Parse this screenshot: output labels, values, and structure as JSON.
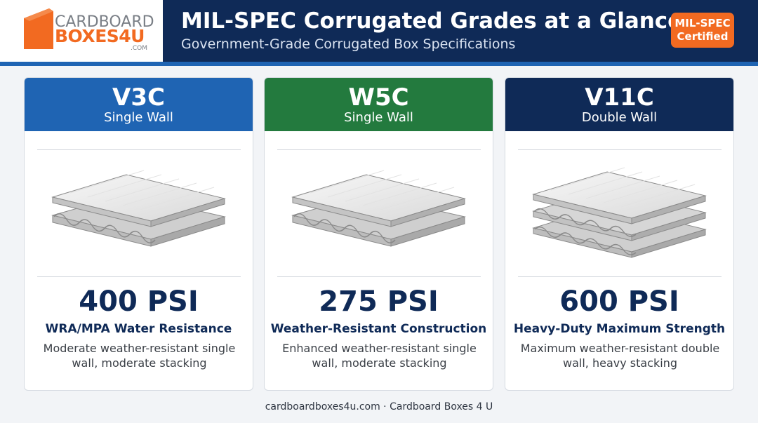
{
  "logo": {
    "line1": "CARDBOARD",
    "line2": "BOXES4U",
    "line3": ".COM"
  },
  "header": {
    "title": "MIL-SPEC Corrugated Grades at a Glance",
    "subtitle": "Government-Grade Corrugated Box Specifications",
    "badge_line1": "MIL-SPEC",
    "badge_line2": "Certified"
  },
  "colors": {
    "navy": "#0f2a57",
    "blue": "#1f64b3",
    "green": "#237a3e",
    "orange": "#f26a21"
  },
  "cards": [
    {
      "grade": "V3C",
      "wall": "Single Wall",
      "psi": "400 PSI",
      "feature": "WRA/MPA Water Resistance",
      "description": "Moderate weather-resistant single wall, moderate stacking",
      "illustration": "single-wall-board-icon"
    },
    {
      "grade": "W5C",
      "wall": "Single Wall",
      "psi": "275 PSI",
      "feature": "Weather-Resistant Construction",
      "description": "Enhanced weather-resistant single wall, moderate stacking",
      "illustration": "single-wall-board-icon"
    },
    {
      "grade": "V11C",
      "wall": "Double Wall",
      "psi": "600 PSI",
      "feature": "Heavy-Duty Maximum Strength",
      "description": "Maximum weather-resistant double wall, heavy stacking",
      "illustration": "double-wall-board-icon"
    }
  ],
  "footer": {
    "text": "cardboardboxes4u.com · Cardboard Boxes 4 U"
  }
}
